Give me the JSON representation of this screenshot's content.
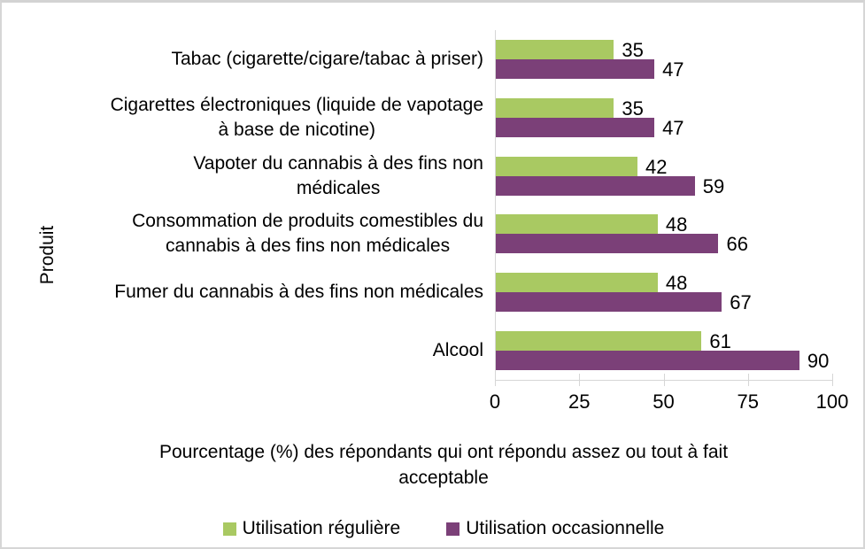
{
  "chart_data": {
    "type": "bar",
    "orientation": "horizontal",
    "ylabel": "Produit",
    "xlabel": "Pourcentage (%) des répondants qui ont répondu assez ou tout à fait\nacceptable",
    "categories": [
      "Tabac (cigarette/cigare/tabac à priser)",
      "Cigarettes électroniques (liquide de vapotage\nà base de nicotine)",
      "Vapoter du cannabis à des fins non\nmédicales",
      "Consommation de produits comestibles du\ncannabis à des fins non médicales",
      "Fumer du cannabis à des fins non médicales",
      "Alcool"
    ],
    "series": [
      {
        "name": "Utilisation régulière",
        "color": "#a9c962",
        "values": [
          35,
          35,
          42,
          48,
          48,
          61
        ]
      },
      {
        "name": "Utilisation occasionnelle",
        "color": "#7b4078",
        "values": [
          47,
          47,
          59,
          66,
          67,
          90
        ]
      }
    ],
    "xlim": [
      0,
      100
    ],
    "xticks": [
      0,
      25,
      50,
      75,
      100
    ],
    "grid": false,
    "legend_position": "bottom",
    "value_labels": true
  },
  "colors": {
    "axis_line": "#d6d6d6",
    "text": "#000000",
    "background": "#ffffff"
  }
}
